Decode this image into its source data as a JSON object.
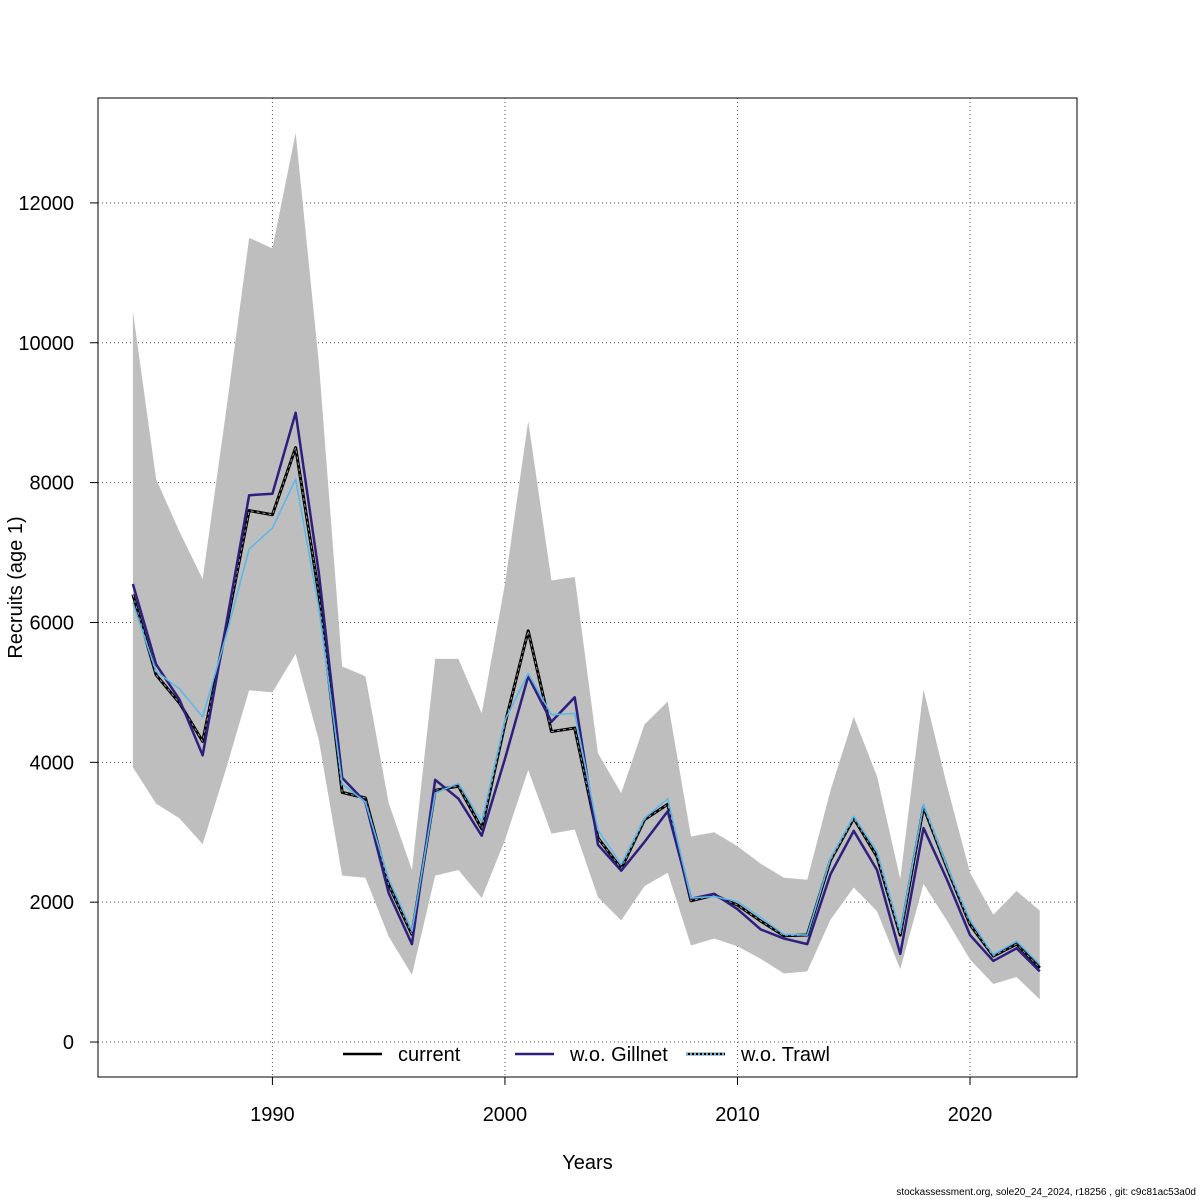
{
  "chart_data": {
    "type": "line",
    "title": "",
    "xlabel": "Years",
    "ylabel": "Recruits (age 1)",
    "xlim": [
      1982.5,
      2024.6
    ],
    "ylim": [
      -500,
      13500
    ],
    "x_ticks": [
      1990,
      2000,
      2010,
      2020
    ],
    "y_ticks": [
      0,
      2000,
      4000,
      6000,
      8000,
      10000,
      12000
    ],
    "grid": true,
    "legend_position": "bottom",
    "x": [
      1984,
      1985,
      1986,
      1987,
      1988,
      1989,
      1990,
      1991,
      1992,
      1993,
      1994,
      1995,
      1996,
      1997,
      1998,
      1999,
      2000,
      2001,
      2002,
      2003,
      2004,
      2005,
      2006,
      2007,
      2008,
      2009,
      2010,
      2011,
      2012,
      2013,
      2014,
      2015,
      2016,
      2017,
      2018,
      2019,
      2020,
      2021,
      2022,
      2023
    ],
    "confidence_band": {
      "color": "#bebebe",
      "upper": [
        10450,
        8050,
        7300,
        6620,
        9000,
        11500,
        11350,
        13000,
        9700,
        5370,
        5230,
        3420,
        2460,
        5480,
        5480,
        4700,
        6550,
        8880,
        6600,
        6650,
        4130,
        3560,
        4540,
        4870,
        2940,
        3000,
        2800,
        2550,
        2350,
        2320,
        3600,
        4650,
        3800,
        2330,
        5040,
        3680,
        2420,
        1820,
        2160,
        1880
      ],
      "lower": [
        3930,
        3410,
        3200,
        2830,
        3900,
        5030,
        5000,
        5550,
        4310,
        2380,
        2350,
        1510,
        960,
        2380,
        2460,
        2060,
        2890,
        3890,
        2980,
        3040,
        2070,
        1740,
        2230,
        2420,
        1380,
        1480,
        1370,
        1190,
        980,
        1010,
        1750,
        2210,
        1870,
        1040,
        2260,
        1740,
        1180,
        830,
        930,
        610
      ]
    },
    "series": [
      {
        "name": "current",
        "color": "#000000",
        "dash": "solid",
        "values": [
          6400,
          5250,
          4850,
          4300,
          5900,
          7600,
          7540,
          8500,
          6400,
          3570,
          3490,
          2250,
          1540,
          3600,
          3660,
          3050,
          4550,
          5880,
          4440,
          4490,
          2920,
          2480,
          3180,
          3400,
          2020,
          2100,
          1960,
          1730,
          1520,
          1530,
          2600,
          3200,
          2650,
          1530,
          3360,
          2500,
          1680,
          1230,
          1400,
          1060
        ]
      },
      {
        "name": "w.o. Gillnet",
        "color": "#2e1e80",
        "dash": "solid",
        "values": [
          6550,
          5400,
          4900,
          4100,
          5950,
          7820,
          7840,
          9000,
          6700,
          3780,
          3430,
          2130,
          1400,
          3750,
          3480,
          2950,
          4050,
          5230,
          4580,
          4930,
          2820,
          2450,
          2860,
          3300,
          2050,
          2120,
          1900,
          1610,
          1480,
          1400,
          2400,
          3020,
          2460,
          1260,
          3060,
          2330,
          1530,
          1160,
          1340,
          1010
        ]
      },
      {
        "name": "w.o. Trawl",
        "color": "#5bb8e8",
        "dash": "dotted",
        "values": [
          6280,
          5300,
          5050,
          4650,
          5800,
          7050,
          7350,
          8050,
          6200,
          3690,
          3430,
          2330,
          1590,
          3560,
          3700,
          3150,
          4600,
          5270,
          4680,
          4700,
          3030,
          2540,
          3200,
          3480,
          2060,
          2080,
          2010,
          1780,
          1540,
          1530,
          2630,
          3230,
          2720,
          1580,
          3400,
          2520,
          1740,
          1250,
          1440,
          1110
        ]
      }
    ]
  },
  "footer": {
    "note": "stockassessment.org, sole20_24_2024, r18256 , git: c9c81ac53a0d"
  }
}
